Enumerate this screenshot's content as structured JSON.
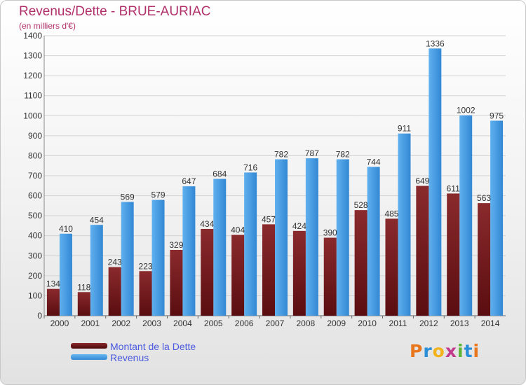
{
  "colors": {
    "debt": "#7a1c1f",
    "revenue": "#3f9ae0",
    "title": "#b0306a",
    "legend_text": "#4a5adf"
  },
  "chart_data": {
    "type": "bar",
    "title": "Revenus/Dette - BRUE-AURIAC",
    "subtitle": "(en milliers d'€)",
    "categories": [
      "2000",
      "2001",
      "2002",
      "2003",
      "2004",
      "2005",
      "2006",
      "2007",
      "2008",
      "2009",
      "2010",
      "2011",
      "2012",
      "2013",
      "2014"
    ],
    "series": [
      {
        "name": "Montant de la Dette",
        "values": [
          134,
          118,
          243,
          223,
          329,
          434,
          404,
          457,
          424,
          390,
          528,
          485,
          649,
          611,
          563
        ]
      },
      {
        "name": "Revenus",
        "values": [
          410,
          454,
          569,
          579,
          647,
          684,
          716,
          782,
          787,
          782,
          744,
          911,
          1336,
          1002,
          975
        ]
      }
    ],
    "ylim": [
      0,
      1400
    ],
    "yticks": [
      0,
      100,
      200,
      300,
      400,
      500,
      600,
      700,
      800,
      900,
      1000,
      1100,
      1200,
      1300,
      1400
    ],
    "grid": true,
    "legend_position": "bottom-left"
  },
  "legend": {
    "debt_label": "Montant de la Dette",
    "revenue_label": "Revenus"
  },
  "logo": {
    "letters": [
      "P",
      "r",
      "o",
      "x",
      "i",
      "t",
      "i"
    ],
    "colors": [
      "#e8761c",
      "#2a8fd8",
      "#f2b21c",
      "#c23a8c",
      "#5cb534",
      "#2a8fd8",
      "#e8761c"
    ]
  }
}
